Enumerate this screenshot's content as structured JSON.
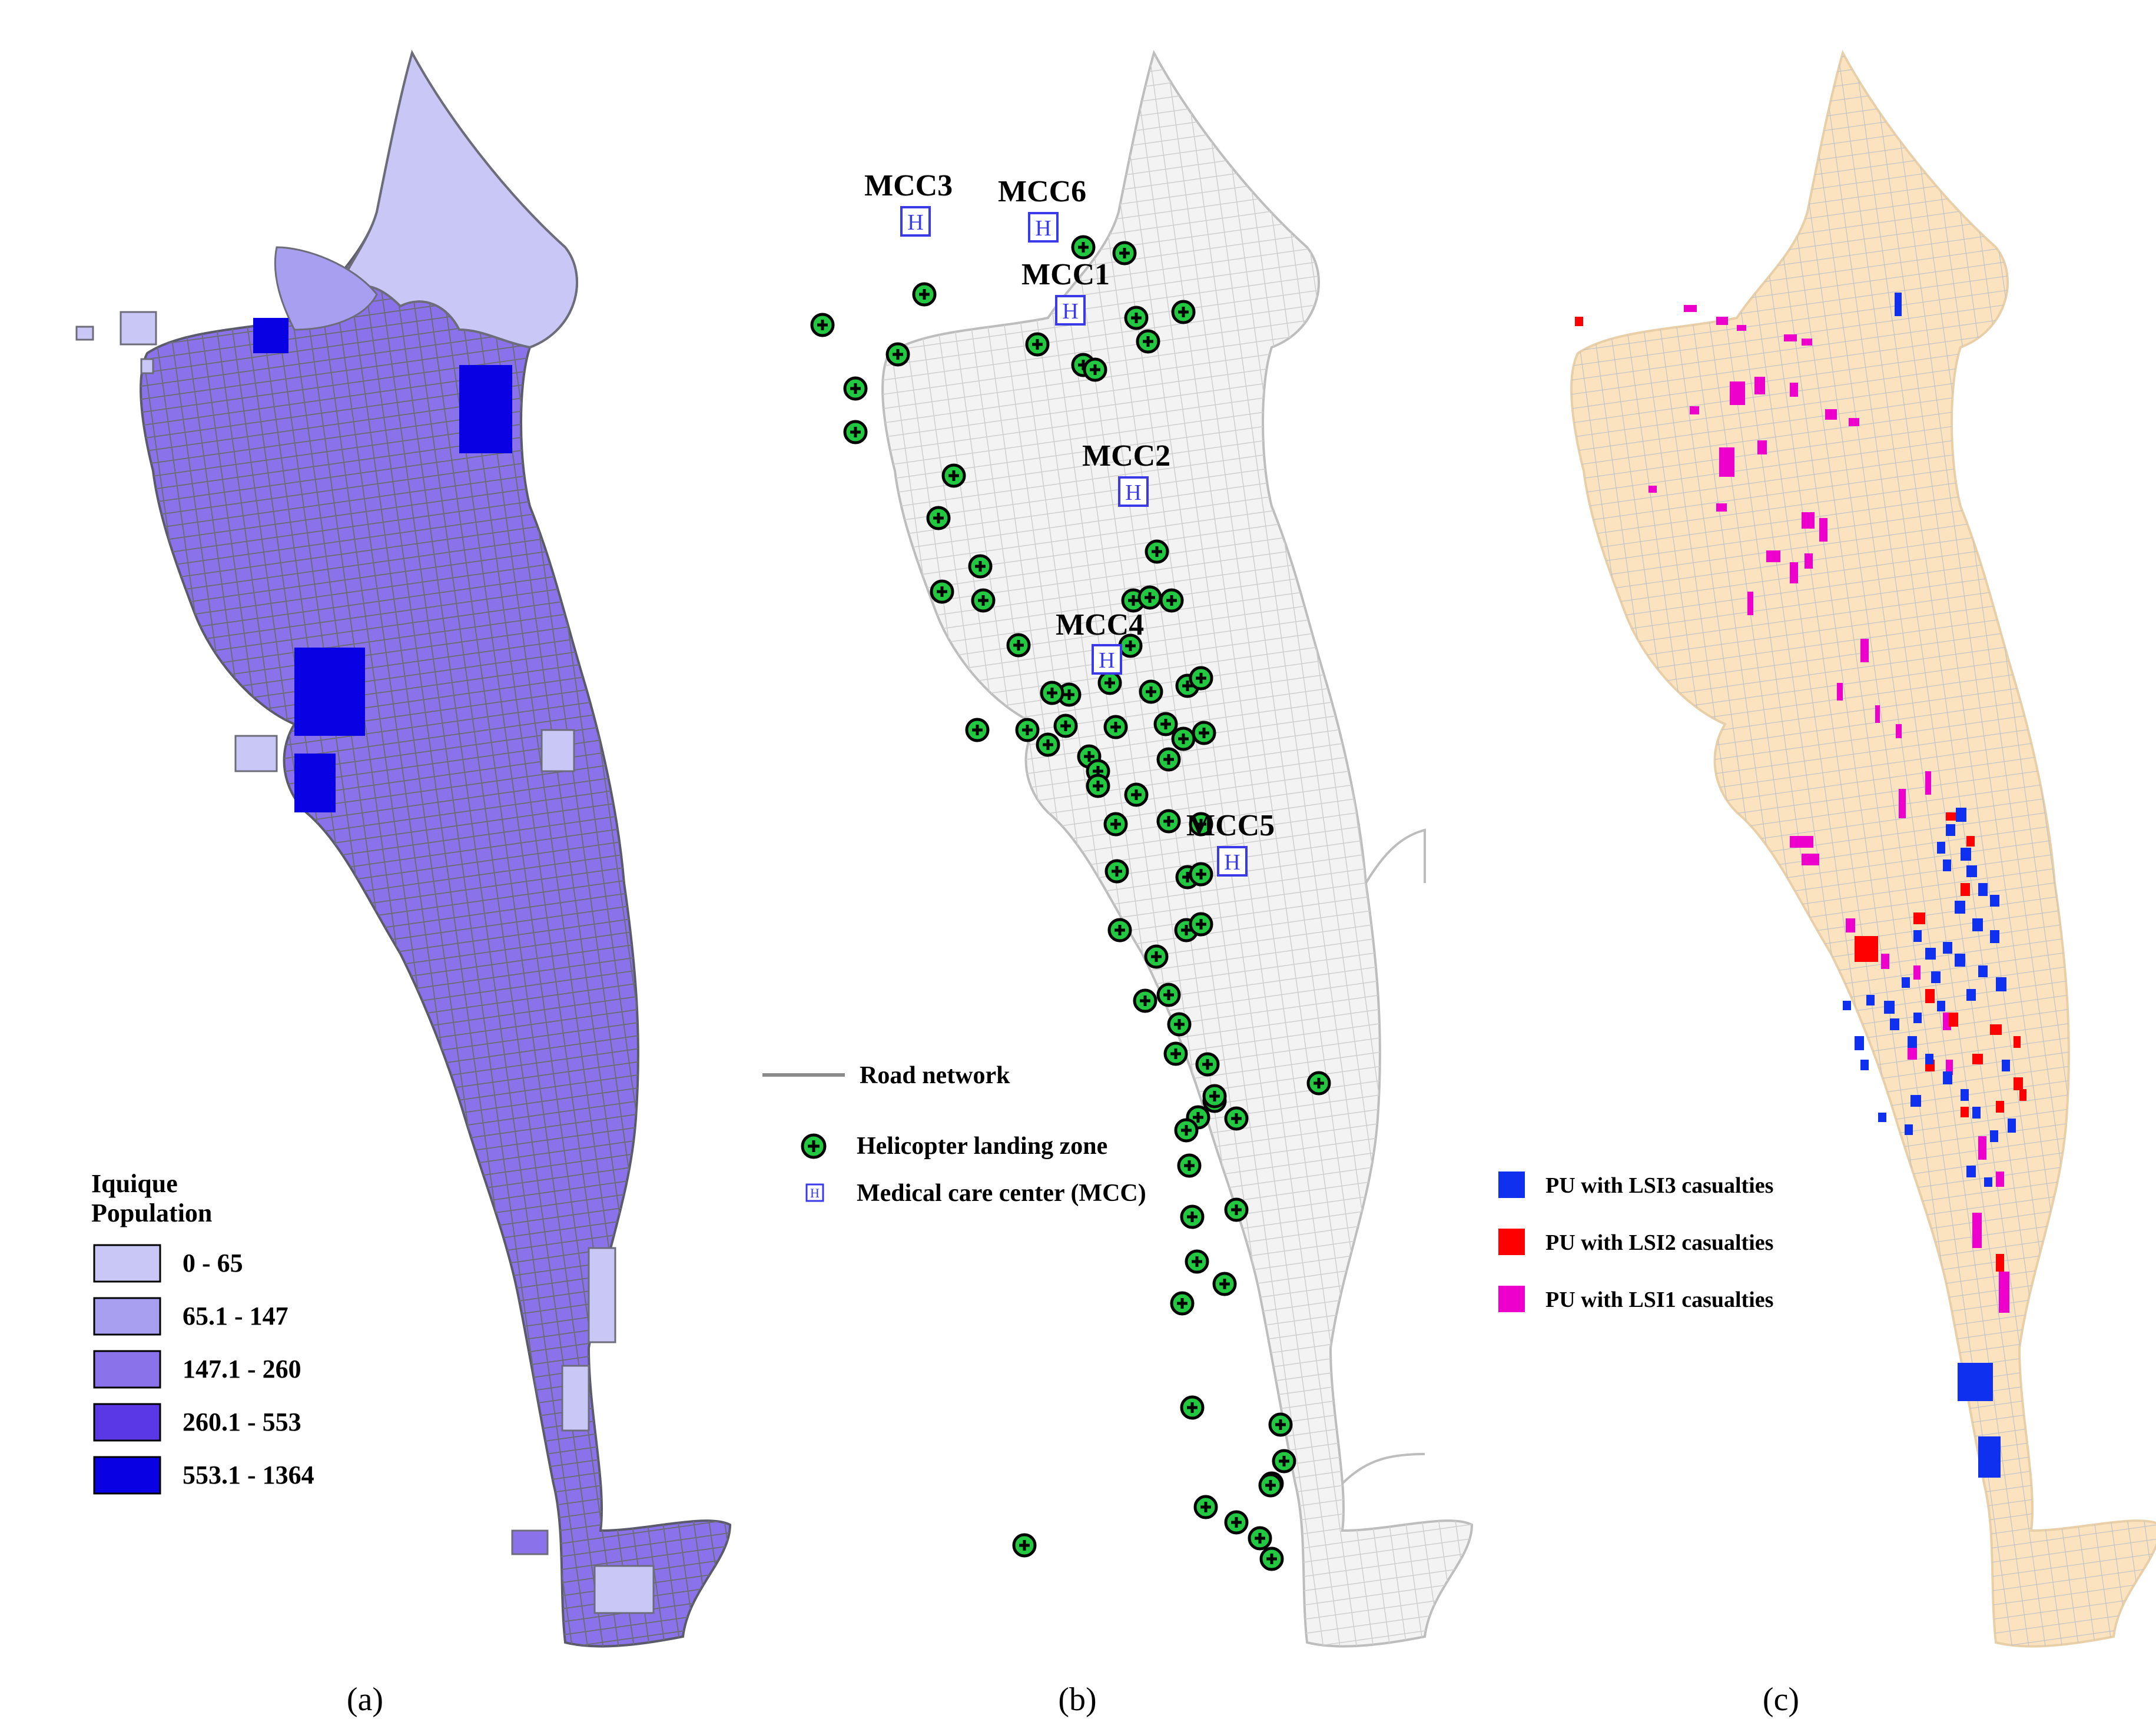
{
  "panels": [
    {
      "id": "a",
      "label": "(a)"
    },
    {
      "id": "b",
      "label": "(b)"
    },
    {
      "id": "c",
      "label": "(c)"
    }
  ],
  "population_legend": {
    "title_line1": "Iquique",
    "title_line2": "Population",
    "classes": [
      {
        "label": "0 - 65",
        "color": "#c9c7f5"
      },
      {
        "label": "65.1 - 147",
        "color": "#a99ff0"
      },
      {
        "label": "147.1 - 260",
        "color": "#8a73ea"
      },
      {
        "label": "260.1 - 553",
        "color": "#5a38e6"
      },
      {
        "label": "553.1 - 1364",
        "color": "#0a00e4"
      }
    ]
  },
  "network_legend": {
    "road": "Road network",
    "helicopter": "Helicopter landing zone",
    "mcc": "Medical care center (MCC)"
  },
  "mcc_labels": [
    "MCC3",
    "MCC6",
    "MCC1",
    "MCC2",
    "MCC4",
    "MCC5"
  ],
  "casualty_legend": [
    {
      "label": "PU with LSI3 casualties",
      "color": "#1030f0"
    },
    {
      "label": "PU with LSI2 casualties",
      "color": "#ff0000"
    },
    {
      "label": "PU with LSI1 casualties",
      "color": "#ee00cc"
    }
  ],
  "colors": {
    "panel_a_fill": "#8a73ea",
    "panel_c_fill": "#fbe3bf",
    "road_gray": "#8a8a8a",
    "helipad_green": "#22c840",
    "mcc_blue": "#3a3ae8"
  }
}
